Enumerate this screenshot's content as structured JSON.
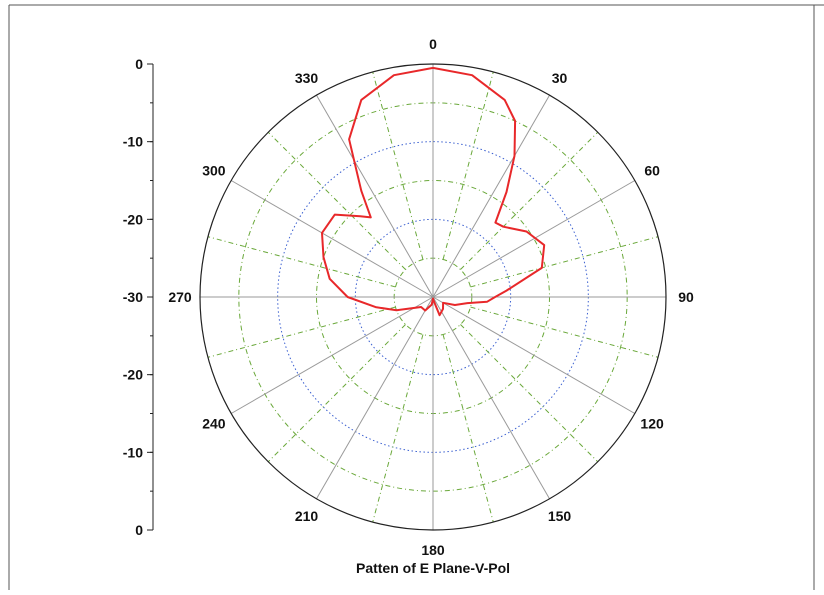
{
  "chart_data": {
    "type": "polar",
    "title": "Patten of E Plane-V-Pol",
    "angle_labels": [
      "0",
      "30",
      "60",
      "90",
      "120",
      "150",
      "180",
      "210",
      "240",
      "270",
      "300",
      "330"
    ],
    "radial_range": [
      -30,
      0
    ],
    "radial_tick_labels_upper": [
      "0",
      "-10",
      "-20",
      "-30"
    ],
    "radial_tick_labels_lower": [
      "-20",
      "-10",
      "0"
    ],
    "grid": true,
    "series": [
      {
        "color": "#e8282a",
        "points": [
          {
            "angle": 0,
            "value": -0.5
          },
          {
            "angle": 10,
            "value": -1.0
          },
          {
            "angle": 20,
            "value": -3.0
          },
          {
            "angle": 25,
            "value": -5.0
          },
          {
            "angle": 30,
            "value": -9.0
          },
          {
            "angle": 35,
            "value": -13.5
          },
          {
            "angle": 40,
            "value": -17.5
          },
          {
            "angle": 45,
            "value": -17.2
          },
          {
            "angle": 55,
            "value": -15.3
          },
          {
            "angle": 65,
            "value": -14.2
          },
          {
            "angle": 75,
            "value": -15.5
          },
          {
            "angle": 85,
            "value": -20.5
          },
          {
            "angle": 90,
            "value": -22.0
          },
          {
            "angle": 95,
            "value": -23.0
          },
          {
            "angle": 100,
            "value": -25.5
          },
          {
            "angle": 110,
            "value": -27.0
          },
          {
            "angle": 120,
            "value": -28.5
          },
          {
            "angle": 140,
            "value": -28.0
          },
          {
            "angle": 160,
            "value": -27.5
          },
          {
            "angle": 170,
            "value": -29.5
          },
          {
            "angle": 180,
            "value": -29.8
          },
          {
            "angle": 190,
            "value": -29.0
          },
          {
            "angle": 210,
            "value": -28.0
          },
          {
            "angle": 230,
            "value": -28.0
          },
          {
            "angle": 250,
            "value": -25.0
          },
          {
            "angle": 260,
            "value": -22.5
          },
          {
            "angle": 270,
            "value": -19.0
          },
          {
            "angle": 280,
            "value": -16.5
          },
          {
            "angle": 290,
            "value": -15.0
          },
          {
            "angle": 300,
            "value": -13.5
          },
          {
            "angle": 310,
            "value": -13.5
          },
          {
            "angle": 318,
            "value": -16.0
          },
          {
            "angle": 322,
            "value": -17.0
          },
          {
            "angle": 326,
            "value": -13.5
          },
          {
            "angle": 332,
            "value": -7.0
          },
          {
            "angle": 340,
            "value": -3.0
          },
          {
            "angle": 350,
            "value": -1.0
          },
          {
            "angle": 360,
            "value": -0.5
          }
        ]
      }
    ]
  }
}
